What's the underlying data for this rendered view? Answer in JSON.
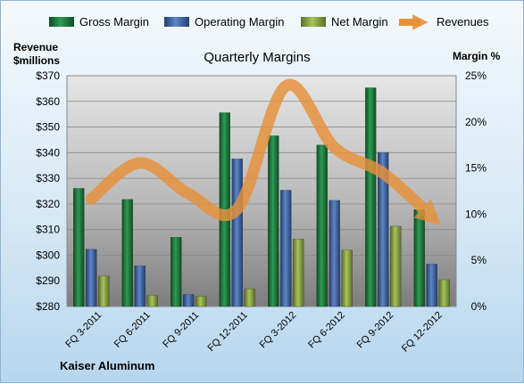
{
  "chart_data": {
    "type": "bar",
    "title": "Quarterly Margins",
    "company": "Kaiser Aluminum",
    "categories": [
      "FQ 3-2011",
      "FQ 6-2011",
      "FQ 9-2011",
      "FQ 12-2011",
      "FQ 3-2012",
      "FQ 6-2012",
      "FQ 9-2012",
      "FQ 12-2012"
    ],
    "series": [
      {
        "name": "Gross Margin",
        "axis": "right",
        "kind": "bar",
        "color": "#1e7a3c",
        "values": [
          12.8,
          11.6,
          7.5,
          21.0,
          18.5,
          17.5,
          23.7,
          10.5
        ]
      },
      {
        "name": "Operating Margin",
        "axis": "right",
        "kind": "bar",
        "color": "#3d66a8",
        "values": [
          6.2,
          4.4,
          1.3,
          16.0,
          12.6,
          11.5,
          16.7,
          4.6
        ]
      },
      {
        "name": "Net Margin",
        "axis": "right",
        "kind": "bar",
        "color": "#8aa63a",
        "values": [
          3.3,
          1.2,
          1.1,
          1.9,
          7.3,
          6.1,
          8.7,
          2.9
        ]
      },
      {
        "name": "Revenues",
        "axis": "left",
        "kind": "line",
        "color": "#e8913a",
        "values": [
          322,
          336,
          324,
          318,
          366,
          342,
          332,
          315
        ]
      }
    ],
    "left_axis": {
      "label_line1": "Revenue",
      "label_line2": "$millions",
      "min": 280,
      "max": 370,
      "step": 10,
      "ticks": [
        "$280",
        "$290",
        "$300",
        "$310",
        "$320",
        "$330",
        "$340",
        "$350",
        "$360",
        "$370"
      ]
    },
    "right_axis": {
      "label": "Margin %",
      "min": 0,
      "max": 25,
      "step": 5,
      "ticks": [
        "0%",
        "5%",
        "10%",
        "15%",
        "20%",
        "25%"
      ]
    },
    "grid": true,
    "legend_position": "top"
  }
}
